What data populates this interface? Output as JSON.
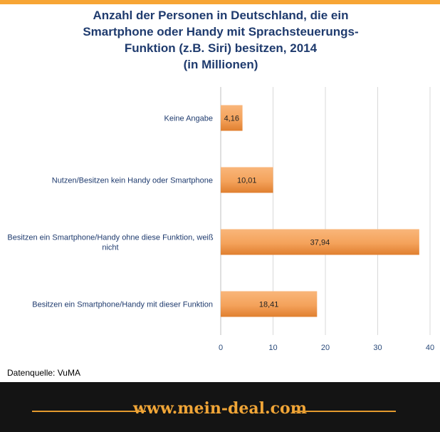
{
  "title_lines": [
    "Anzahl der Personen in Deutschland,  die ein",
    "Smartphone  oder Handy mit Sprachsteuerungs-",
    "Funktion  (z.B. Siri) besitzen, 2014",
    "(in Millionen)"
  ],
  "source": "Datenquelle: VuMA",
  "footer": {
    "brand": "www.mein-deal.com"
  },
  "colors": {
    "title": "#1f3b6e",
    "bar": "#f4a25b",
    "bar_dark": "#e07f2f",
    "accent": "#f7a535"
  },
  "chart_data": {
    "type": "bar",
    "orientation": "horizontal",
    "categories": [
      [
        "Keine Angabe"
      ],
      [
        "Nutzen/Besitzen kein Handy oder Smartphone"
      ],
      [
        "Besitzen ein Smartphone/Handy ohne diese Funktion, weiß",
        "nicht"
      ],
      [
        "Besitzen ein Smartphone/Handy mit dieser Funktion"
      ]
    ],
    "values": [
      4.16,
      10.01,
      37.94,
      18.41
    ],
    "value_labels": [
      "4,16",
      "10,01",
      "37,94",
      "18,41"
    ],
    "xlim": [
      0,
      40
    ],
    "xticks": [
      0,
      10,
      20,
      30,
      40
    ],
    "grid": true,
    "legend": "none"
  }
}
